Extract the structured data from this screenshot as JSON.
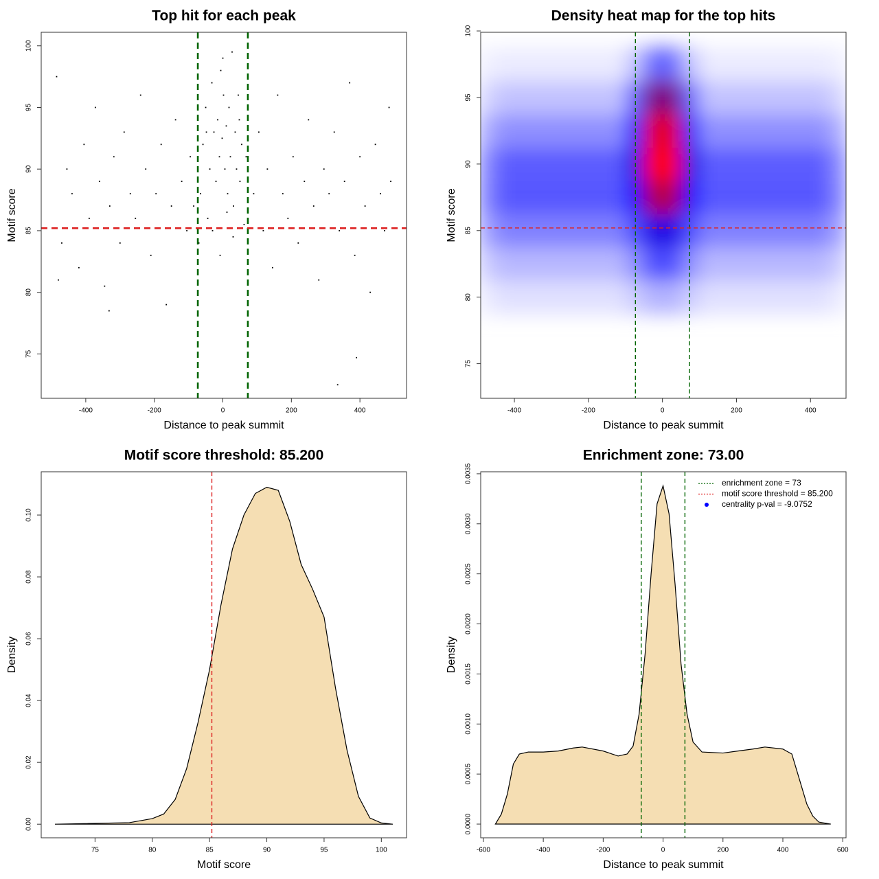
{
  "chart_data": [
    {
      "type": "scatter",
      "title": "Top hit for each peak",
      "xlabel": "Distance to peak summit",
      "ylabel": "Motif score",
      "x": [
        -485,
        -470,
        -455,
        -440,
        -420,
        -405,
        -390,
        -372,
        -360,
        -345,
        -330,
        -318,
        -300,
        -288,
        -270,
        -255,
        -240,
        -225,
        -210,
        -195,
        -180,
        -165,
        -150,
        -138,
        -120,
        -105,
        -95,
        -85,
        90,
        105,
        118,
        130,
        145,
        160,
        175,
        190,
        205,
        220,
        238,
        250,
        265,
        280,
        295,
        310,
        325,
        340,
        355,
        370,
        385,
        400,
        415,
        430,
        445,
        460,
        472,
        485,
        490,
        -480,
        -332,
        335,
        390,
        -65,
        -58,
        -50,
        -44,
        -38,
        -32,
        -26,
        -20,
        -15,
        -10,
        -6,
        -2,
        2,
        6,
        10,
        14,
        18,
        22,
        27,
        31,
        36,
        40,
        45,
        50,
        55,
        62,
        68,
        -70,
        0,
        12,
        -8,
        30,
        -30,
        48,
        -48
      ],
      "y": [
        97.5,
        84,
        90,
        88,
        82,
        92,
        86,
        95,
        89,
        80.5,
        87,
        91,
        84,
        93,
        88,
        86,
        96,
        90,
        83,
        88,
        92,
        79,
        87,
        94,
        89,
        85,
        91,
        87,
        88,
        93,
        85,
        90,
        82,
        96,
        88,
        86,
        91,
        84,
        89,
        94,
        87,
        81,
        90,
        88,
        93,
        85,
        89,
        97,
        83,
        91,
        87,
        80,
        92,
        88,
        85,
        95,
        89,
        81,
        78.5,
        72.5,
        74.7,
        88,
        92,
        95,
        86,
        90,
        97,
        93,
        89,
        94,
        91,
        98,
        92.5,
        96,
        90,
        93.5,
        88,
        95,
        91,
        99.5,
        87,
        93,
        90,
        96,
        89,
        92,
        85.5,
        91,
        84,
        99,
        86.5,
        83,
        84.5,
        85,
        94,
        93
      ],
      "color": "#000000",
      "xlim": [
        -530,
        536
      ],
      "ylim": [
        71.4,
        101.1
      ],
      "xticks": [
        -400,
        -200,
        0,
        200,
        400
      ],
      "yticks": [
        75,
        80,
        85,
        90,
        95,
        100
      ],
      "vlines": [
        -73,
        73
      ],
      "vline_color": "#006400",
      "hline": 85.2,
      "hline_color": "#dd2222"
    },
    {
      "type": "heatmap",
      "title": "Density heat map for the top hits",
      "xlabel": "Distance to peak summit",
      "ylabel": "Motif score",
      "x": [
        -475,
        -425,
        -375,
        -325,
        -275,
        -225,
        -175,
        -125,
        -75,
        -25,
        25,
        75,
        125,
        175,
        225,
        275,
        325,
        375,
        425,
        475
      ],
      "y": [
        80,
        82.5,
        85,
        87.5,
        90,
        92.5,
        95,
        97.5
      ],
      "z": [
        [
          0.04,
          0.06,
          0.06,
          0.06,
          0.06,
          0.06,
          0.06,
          0.06,
          0.1,
          0.15,
          0.15,
          0.1,
          0.06,
          0.06,
          0.06,
          0.06,
          0.06,
          0.06,
          0.06,
          0.04
        ],
        [
          0.1,
          0.14,
          0.14,
          0.14,
          0.14,
          0.14,
          0.14,
          0.14,
          0.22,
          0.35,
          0.35,
          0.22,
          0.14,
          0.14,
          0.14,
          0.14,
          0.14,
          0.14,
          0.14,
          0.1
        ],
        [
          0.18,
          0.25,
          0.25,
          0.25,
          0.25,
          0.25,
          0.25,
          0.25,
          0.35,
          0.55,
          0.55,
          0.35,
          0.25,
          0.25,
          0.25,
          0.25,
          0.25,
          0.25,
          0.25,
          0.18
        ],
        [
          0.24,
          0.33,
          0.33,
          0.33,
          0.33,
          0.33,
          0.33,
          0.33,
          0.5,
          0.85,
          0.85,
          0.5,
          0.33,
          0.33,
          0.33,
          0.33,
          0.33,
          0.33,
          0.33,
          0.24
        ],
        [
          0.23,
          0.32,
          0.32,
          0.32,
          0.32,
          0.32,
          0.32,
          0.32,
          0.55,
          1,
          1,
          0.55,
          0.32,
          0.32,
          0.32,
          0.32,
          0.32,
          0.32,
          0.32,
          0.23
        ],
        [
          0.16,
          0.22,
          0.22,
          0.22,
          0.22,
          0.22,
          0.22,
          0.22,
          0.45,
          0.95,
          0.95,
          0.45,
          0.22,
          0.22,
          0.22,
          0.22,
          0.22,
          0.22,
          0.22,
          0.16
        ],
        [
          0.08,
          0.12,
          0.12,
          0.12,
          0.12,
          0.12,
          0.12,
          0.12,
          0.3,
          0.75,
          0.75,
          0.3,
          0.12,
          0.12,
          0.12,
          0.12,
          0.12,
          0.12,
          0.12,
          0.08
        ],
        [
          0.03,
          0.04,
          0.04,
          0.04,
          0.04,
          0.04,
          0.04,
          0.04,
          0.12,
          0.3,
          0.3,
          0.12,
          0.04,
          0.04,
          0.04,
          0.04,
          0.04,
          0.04,
          0.04,
          0.03
        ]
      ],
      "colors": [
        "#ffffff",
        "#0000ff",
        "#ff0000"
      ],
      "xlim": [
        -491,
        496
      ],
      "ylim": [
        72.4,
        99.9
      ],
      "xticks": [
        -400,
        -200,
        0,
        200,
        400
      ],
      "yticks": [
        75,
        80,
        85,
        90,
        95,
        100
      ],
      "vlines": [
        -73,
        73
      ],
      "vline_color": "#006400",
      "hline": 85.2,
      "hline_color": "#dd2222"
    },
    {
      "type": "area",
      "title": "Motif score threshold: 85.200",
      "xlabel": "Motif score",
      "ylabel": "Density",
      "x": [
        71.5,
        78,
        80,
        81,
        82,
        83,
        84,
        85,
        86,
        87,
        88,
        89,
        90,
        91,
        92,
        93,
        94,
        95,
        96,
        97,
        98,
        99,
        100,
        101
      ],
      "y": [
        0,
        0.0005,
        0.0018,
        0.0033,
        0.008,
        0.018,
        0.033,
        0.05,
        0.071,
        0.089,
        0.1,
        0.107,
        0.109,
        0.108,
        0.098,
        0.084,
        0.076,
        0.067,
        0.044,
        0.024,
        0.009,
        0.002,
        0.0004,
        0
      ],
      "color": "#f5deb3",
      "xlim": [
        70.3,
        102.2
      ],
      "ylim": [
        -0.0044,
        0.114
      ],
      "xticks": [
        75,
        80,
        85,
        90,
        95,
        100
      ],
      "yticks": [
        {
          "value": 0,
          "label": "0.00"
        },
        0.02,
        0.04,
        0.06,
        0.08,
        {
          "value": 0.1,
          "label": "0.10"
        }
      ],
      "vlines": [
        85.2
      ],
      "vline_color": "#dd2222"
    },
    {
      "type": "area",
      "title": "Enrichment zone: 73.00",
      "xlabel": "Distance to peak summit",
      "ylabel": "Density",
      "x": [
        -560,
        -540,
        -520,
        -500,
        -480,
        -450,
        -400,
        -350,
        -300,
        -270,
        -200,
        -150,
        -120,
        -100,
        -80,
        -60,
        -40,
        -20,
        0,
        20,
        40,
        60,
        80,
        100,
        130,
        200,
        250,
        300,
        340,
        400,
        430,
        460,
        480,
        500,
        520,
        560
      ],
      "y": [
        0,
        0.0001,
        0.0003,
        0.0006,
        0.0007,
        0.00072,
        0.00072,
        0.00073,
        0.00076,
        0.00077,
        0.00073,
        0.00068,
        0.0007,
        0.00078,
        0.0011,
        0.0017,
        0.0025,
        0.0032,
        0.00338,
        0.0031,
        0.0024,
        0.0016,
        0.0011,
        0.00082,
        0.00072,
        0.00071,
        0.00073,
        0.00075,
        0.00077,
        0.00075,
        0.0007,
        0.0004,
        0.0002,
        8e-05,
        2e-05,
        0
      ],
      "color": "#f5deb3",
      "xlim": [
        -609,
        611
      ],
      "ylim": [
        -0.000137,
        0.00352
      ],
      "xticks": [
        -600,
        -400,
        -200,
        0,
        200,
        400,
        600
      ],
      "yticks": [
        {
          "value": 0,
          "label": "0.0000"
        },
        0.0005,
        {
          "value": 0.001,
          "label": "0.0010"
        },
        0.0015,
        {
          "value": 0.002,
          "label": "0.0020"
        },
        0.0025,
        {
          "value": 0.003,
          "label": "0.0030"
        },
        0.0035
      ],
      "vlines": [
        -73,
        73
      ],
      "vline_color": "#006400",
      "legend": [
        {
          "label": "enrichment zone = 73",
          "color": "#006400",
          "style": "dotted"
        },
        {
          "label": "motif score threshold = 85.200",
          "color": "#dd2222",
          "style": "dotted"
        },
        {
          "label": "centrality p-val = -9.0752",
          "color": "#0000ff",
          "style": "point"
        }
      ]
    }
  ]
}
